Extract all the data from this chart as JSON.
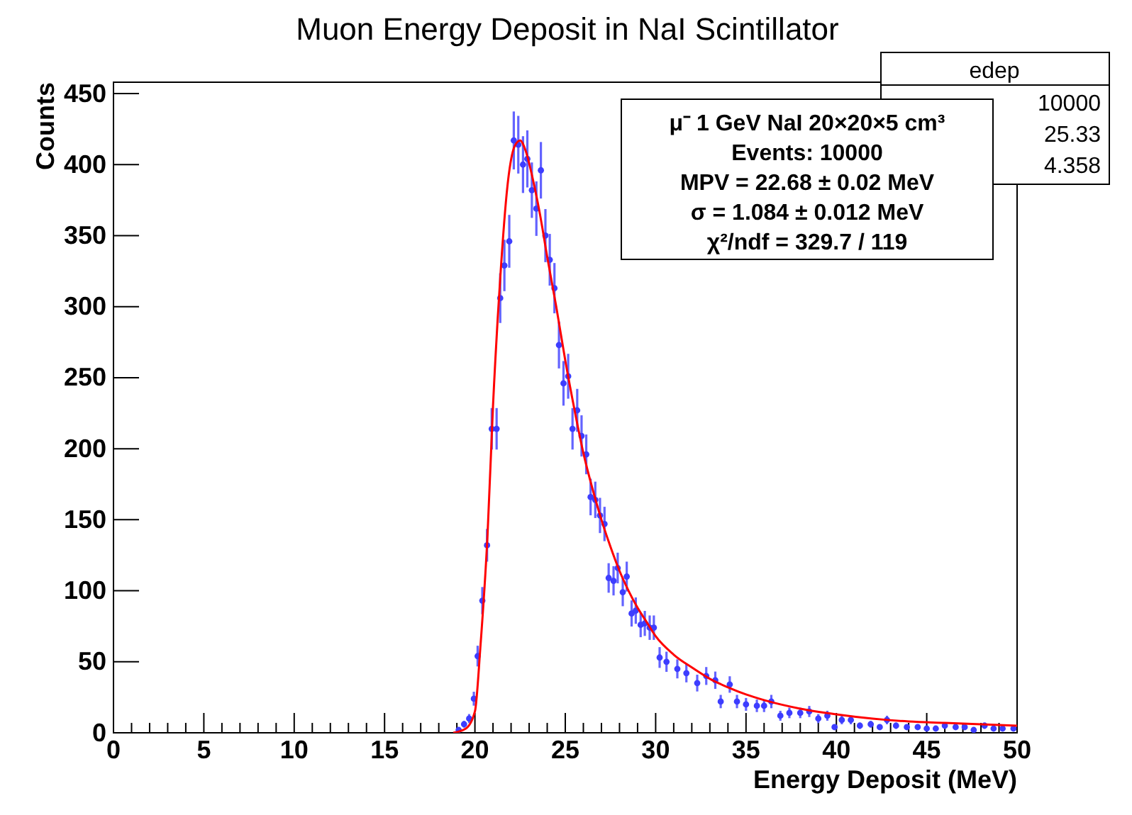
{
  "chart_data": {
    "type": "scatter",
    "title": "Muon Energy Deposit in NaI Scintillator",
    "xlabel": "Energy Deposit (MeV)",
    "ylabel": "Counts",
    "xlim": [
      0,
      50
    ],
    "ylim": [
      0,
      458
    ],
    "xticks": [
      0,
      {
        "value": 1,
        "label": null
      },
      {
        "value": 2,
        "label": null
      },
      {
        "value": 3,
        "label": null
      },
      {
        "value": 4,
        "label": null
      },
      5,
      {
        "value": 6,
        "label": null
      },
      {
        "value": 7,
        "label": null
      },
      {
        "value": 8,
        "label": null
      },
      {
        "value": 9,
        "label": null
      },
      10,
      {
        "value": 11,
        "label": null
      },
      {
        "value": 12,
        "label": null
      },
      {
        "value": 13,
        "label": null
      },
      {
        "value": 14,
        "label": null
      },
      15,
      {
        "value": 16,
        "label": null
      },
      {
        "value": 17,
        "label": null
      },
      {
        "value": 18,
        "label": null
      },
      {
        "value": 19,
        "label": null
      },
      20,
      {
        "value": 21,
        "label": null
      },
      {
        "value": 22,
        "label": null
      },
      {
        "value": 23,
        "label": null
      },
      {
        "value": 24,
        "label": null
      },
      25,
      {
        "value": 26,
        "label": null
      },
      {
        "value": 27,
        "label": null
      },
      {
        "value": 28,
        "label": null
      },
      {
        "value": 29,
        "label": null
      },
      30,
      {
        "value": 31,
        "label": null
      },
      {
        "value": 32,
        "label": null
      },
      {
        "value": 33,
        "label": null
      },
      {
        "value": 34,
        "label": null
      },
      35,
      {
        "value": 36,
        "label": null
      },
      {
        "value": 37,
        "label": null
      },
      {
        "value": 38,
        "label": null
      },
      {
        "value": 39,
        "label": null
      },
      40,
      {
        "value": 41,
        "label": null
      },
      {
        "value": 42,
        "label": null
      },
      {
        "value": 43,
        "label": null
      },
      {
        "value": 44,
        "label": null
      },
      45,
      {
        "value": 46,
        "label": null
      },
      {
        "value": 47,
        "label": null
      },
      {
        "value": 48,
        "label": null
      },
      {
        "value": 49,
        "label": null
      },
      50
    ],
    "yticks": [
      0,
      50,
      100,
      150,
      200,
      250,
      300,
      350,
      400,
      450
    ],
    "grid": false,
    "annotations": [
      "edep",
      "10000",
      "25.33",
      "4.358",
      "μ⁻ 1 GeV  NaI 20×20×5 cm³",
      "Events: 10000",
      "MPV = 22.68 ± 0.02 MeV",
      "σ = 1.084 ± 0.012 MeV",
      "χ²/ndf = 329.7 / 119"
    ],
    "series": [
      {
        "color": "#3d3dff",
        "x": [
          19.1,
          19.4,
          19.68,
          19.94,
          20.15,
          20.41,
          20.67,
          20.93,
          21.2,
          21.4,
          21.63,
          21.9,
          22.15,
          22.4,
          22.66,
          22.9,
          23.15,
          23.4,
          23.65,
          23.9,
          24.14,
          24.4,
          24.65,
          24.9,
          25.16,
          25.4,
          25.66,
          25.9,
          26.16,
          26.4,
          26.66,
          26.92,
          27.17,
          27.4,
          27.67,
          27.9,
          28.18,
          28.4,
          28.67,
          28.9,
          29.17,
          29.4,
          29.67,
          29.9,
          30.22,
          30.6,
          31.2,
          31.7,
          32.3,
          32.8,
          33.3,
          33.6,
          34.1,
          34.5,
          35.0,
          35.6,
          36.0,
          36.4,
          36.9,
          37.4,
          38.0,
          38.5,
          39.0,
          39.5,
          39.9,
          40.3,
          40.8,
          41.3,
          41.9,
          42.4,
          42.8,
          43.3,
          43.9,
          44.5,
          45.0,
          45.5,
          46.0,
          46.6,
          47.1,
          47.6,
          48.2,
          48.7,
          49.2,
          49.8
        ],
        "values": [
          2,
          6,
          10,
          24,
          54,
          93,
          132,
          214,
          214,
          306,
          329,
          346,
          417,
          414,
          400,
          404,
          382,
          369,
          396,
          350,
          333,
          313,
          273,
          246,
          251,
          214,
          227,
          209,
          196,
          166,
          164,
          153,
          147,
          109,
          107,
          116,
          99,
          110,
          84,
          86,
          76,
          77,
          74,
          74,
          53,
          50,
          45,
          42,
          35,
          40,
          37,
          22,
          34,
          22,
          20,
          19,
          19,
          22,
          12,
          14,
          14,
          15,
          10,
          12,
          4,
          9,
          9,
          5,
          6,
          4,
          9,
          5,
          4,
          4,
          3,
          3,
          5,
          4,
          4,
          2,
          5,
          3,
          3,
          3
        ],
        "errors": [
          1.4,
          2.4,
          3.2,
          4.9,
          7.3,
          9.6,
          11.5,
          14.6,
          14.6,
          17.5,
          18.1,
          18.6,
          20.4,
          20.3,
          20,
          20.1,
          19.5,
          19.2,
          19.9,
          18.7,
          18.2,
          17.7,
          16.5,
          15.7,
          15.8,
          14.6,
          15.1,
          14.5,
          14,
          12.9,
          12.8,
          12.4,
          12.1,
          10.4,
          10.3,
          10.8,
          9.9,
          10.5,
          9.2,
          9.3,
          8.7,
          8.8,
          8.6,
          8.6,
          7.3,
          7.1,
          6.7,
          6.5,
          5.9,
          6.3,
          6.1,
          4.7,
          5.8,
          4.7,
          4.5,
          4.4,
          4.4,
          4.7,
          3.5,
          3.7,
          3.7,
          3.9,
          3.2,
          3.5,
          2,
          3,
          3,
          2.2,
          2.4,
          2,
          3,
          2.2,
          2,
          2,
          1.7,
          1.7,
          2.2,
          2,
          2,
          1.4,
          2.2,
          1.7,
          1.7,
          1.7
        ]
      },
      {
        "type": "line",
        "color": "#ff0000",
        "marker": "none",
        "line_style": "solid",
        "x": [
          18.8,
          19.5,
          20,
          20.3,
          20.7,
          21,
          21.4,
          21.8,
          22.2,
          22.5,
          22.8,
          23.2,
          23.6,
          24,
          24.5,
          25,
          25.5,
          26,
          26.5,
          27,
          27.5,
          28,
          28.5,
          29,
          29.5,
          30,
          31,
          32,
          33,
          34,
          35,
          36,
          38,
          40,
          42,
          44,
          46,
          48,
          50
        ],
        "values": [
          0,
          3,
          15,
          60,
          140,
          230,
          320,
          385,
          413,
          417,
          410,
          390,
          365,
          335,
          300,
          262,
          228,
          197,
          172,
          150,
          131,
          114,
          100,
          88,
          78,
          68,
          55,
          46,
          38,
          32,
          27,
          23,
          17,
          13,
          10,
          8,
          7,
          6,
          5
        ]
      }
    ]
  }
}
